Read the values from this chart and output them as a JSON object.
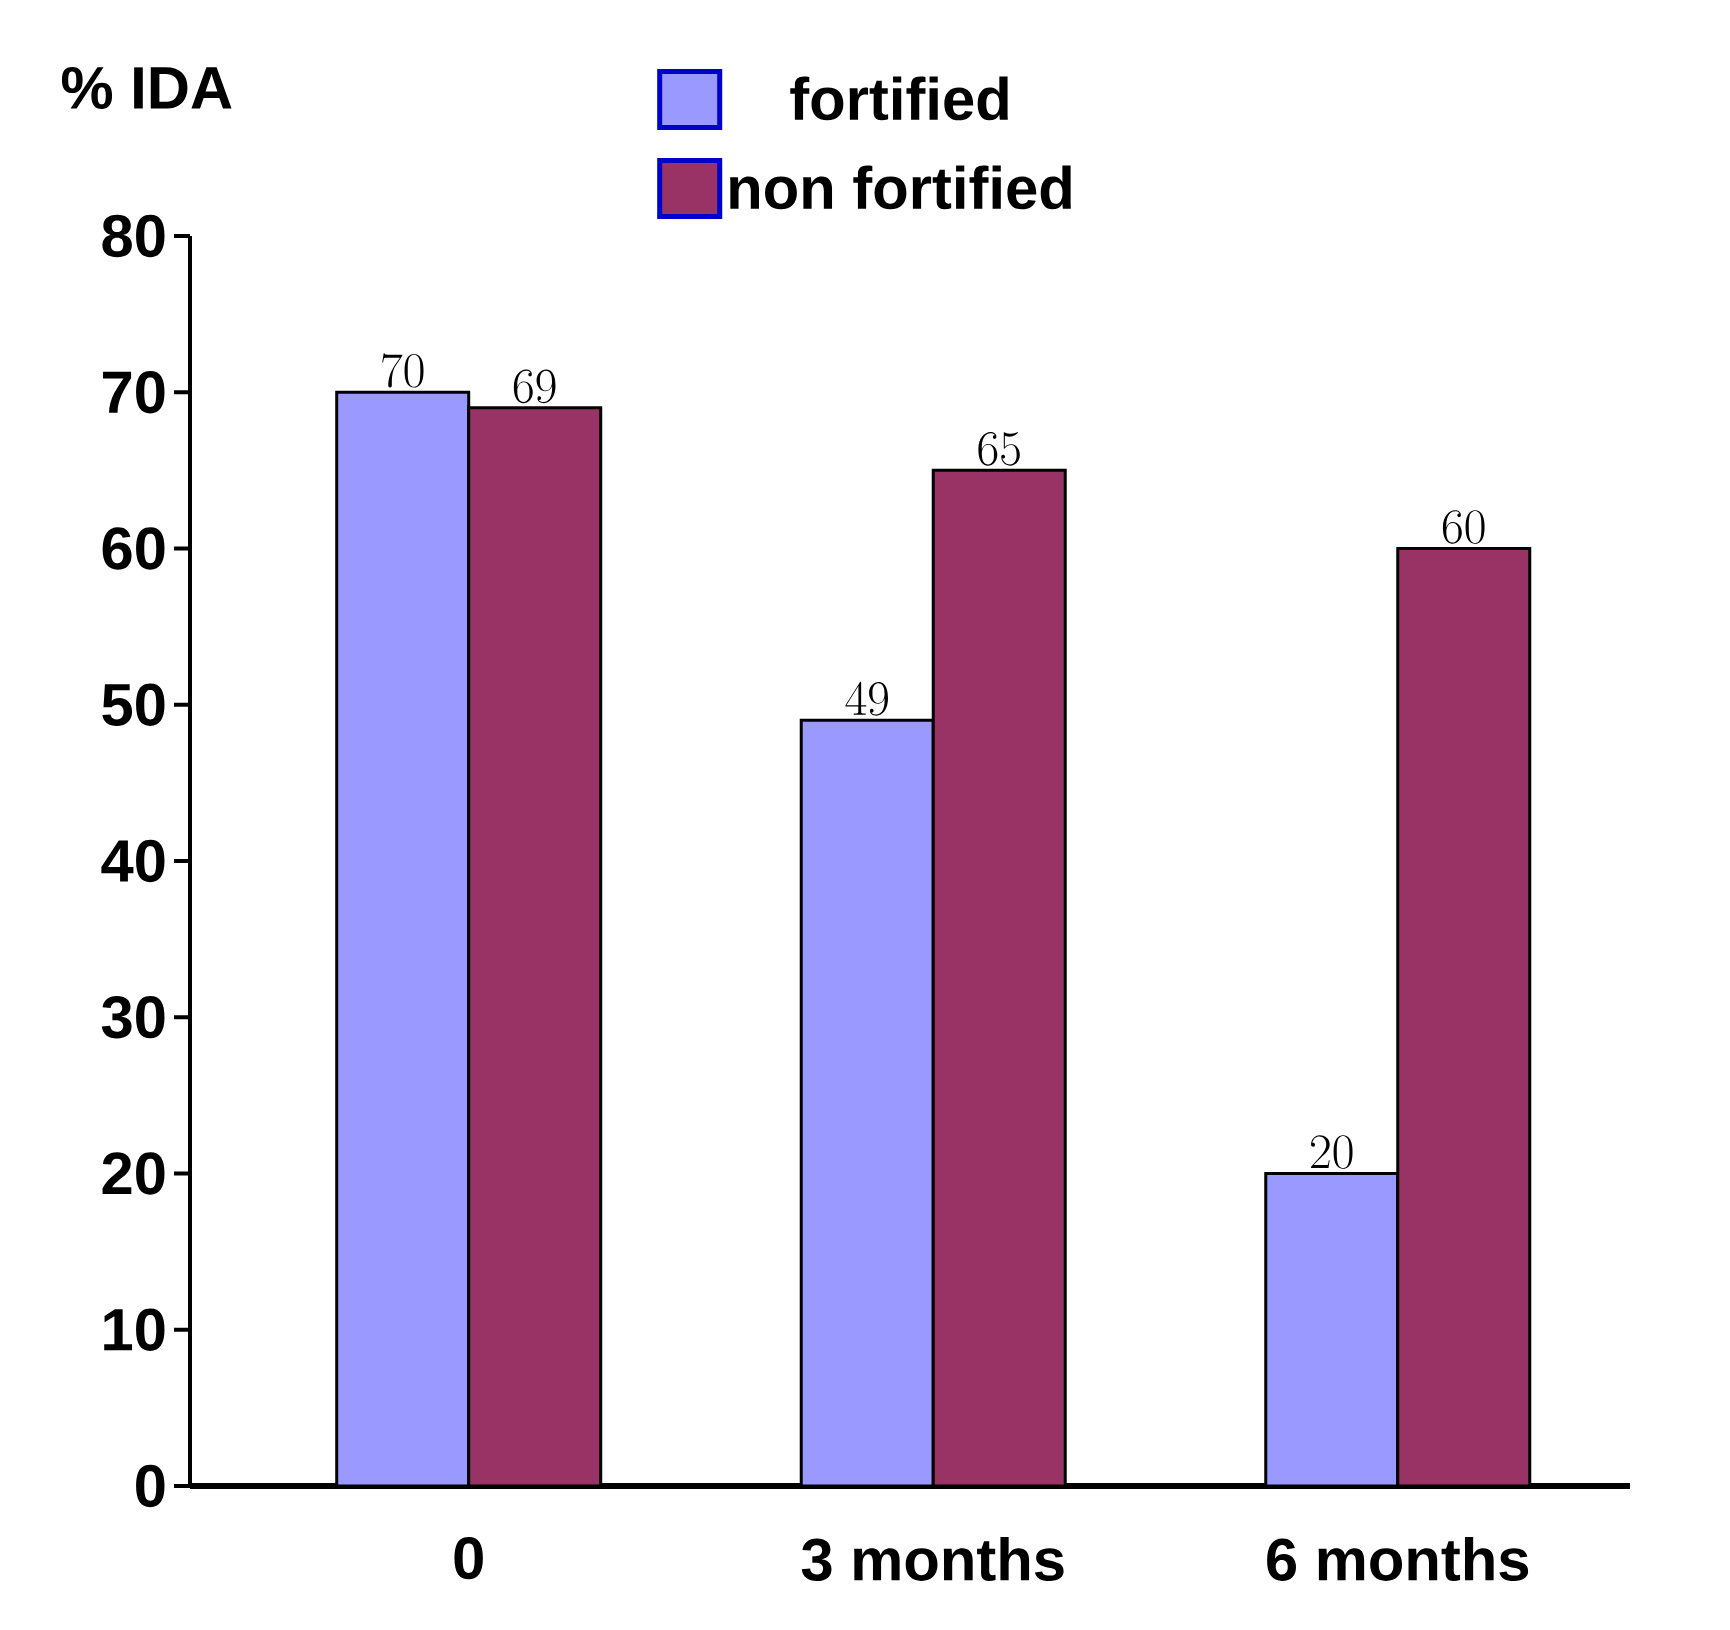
{
  "chart_data": {
    "type": "bar",
    "ylabel": "% IDA",
    "categories": [
      "0",
      "3 months",
      "6 months"
    ],
    "series": [
      {
        "name": "fortified",
        "color": "#9999ff",
        "values": [
          70,
          49,
          20
        ]
      },
      {
        "name": "non fortified",
        "color": "#993366",
        "values": [
          69,
          65,
          60
        ]
      }
    ],
    "ylim": [
      0,
      80
    ],
    "yticks": [
      0,
      10,
      20,
      30,
      40,
      50,
      60,
      70,
      80
    ],
    "data_labels": true,
    "legend": "top",
    "grid": false
  }
}
